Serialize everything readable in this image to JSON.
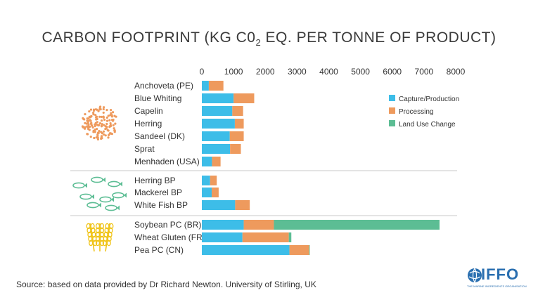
{
  "chart_data": {
    "type": "bar",
    "orientation": "horizontal",
    "stacked": true,
    "title_main": "CARBON FOOTPRINT (KG C0",
    "title_sub": "2",
    "title_rest": " EQ. PER TONNE OF PRODUCT)",
    "xlim": [
      0,
      8000
    ],
    "xticks": [
      "0",
      "1000",
      "2000",
      "3000",
      "4000",
      "5000",
      "6000",
      "7000",
      "8000"
    ],
    "legend_position": "right",
    "groups": [
      {
        "icon": "fish-school-icon",
        "categories": [
          "Anchoveta (PE)",
          "Blue Whiting",
          "Capelin",
          "Herring",
          "Sandeel (DK)",
          "Sprat",
          "Menhaden (USA)"
        ]
      },
      {
        "icon": "fish-byproduct-icon",
        "categories": [
          "Herring BP",
          "Mackerel BP",
          "White Fish BP"
        ]
      },
      {
        "icon": "wheat-icon",
        "categories": [
          "Soybean PC (BR)",
          "Wheat Gluten (FR)",
          "Pea PC (CN)"
        ]
      }
    ],
    "categories": [
      "Anchoveta (PE)",
      "Blue Whiting",
      "Capelin",
      "Herring",
      "Sandeel (DK)",
      "Sprat",
      "Menhaden (USA)",
      "Herring BP",
      "Mackerel BP",
      "White Fish BP",
      "Soybean PC (BR)",
      "Wheat Gluten (FR)",
      "Pea PC (CN)"
    ],
    "series": [
      {
        "name": "Capture/Production",
        "color": "#3dbde8",
        "values": [
          220,
          1000,
          960,
          1040,
          880,
          890,
          320,
          260,
          310,
          1050,
          1320,
          1280,
          2760
        ]
      },
      {
        "name": "Processing",
        "color": "#ee9a5d",
        "values": [
          460,
          650,
          340,
          280,
          440,
          340,
          270,
          210,
          220,
          460,
          950,
          1460,
          620
        ]
      },
      {
        "name": "Land Use Change",
        "color": "#5cbd94",
        "values": [
          0,
          0,
          0,
          0,
          0,
          0,
          0,
          0,
          0,
          0,
          5220,
          80,
          20
        ]
      }
    ]
  },
  "source": "Source: based on data provided by Dr Richard Newton. University of Stirling, UK",
  "logo": {
    "text": "IFFO",
    "tagline": "THE MARINE INGREDIENTS ORGANISATION",
    "color": "#2a6fb0"
  }
}
